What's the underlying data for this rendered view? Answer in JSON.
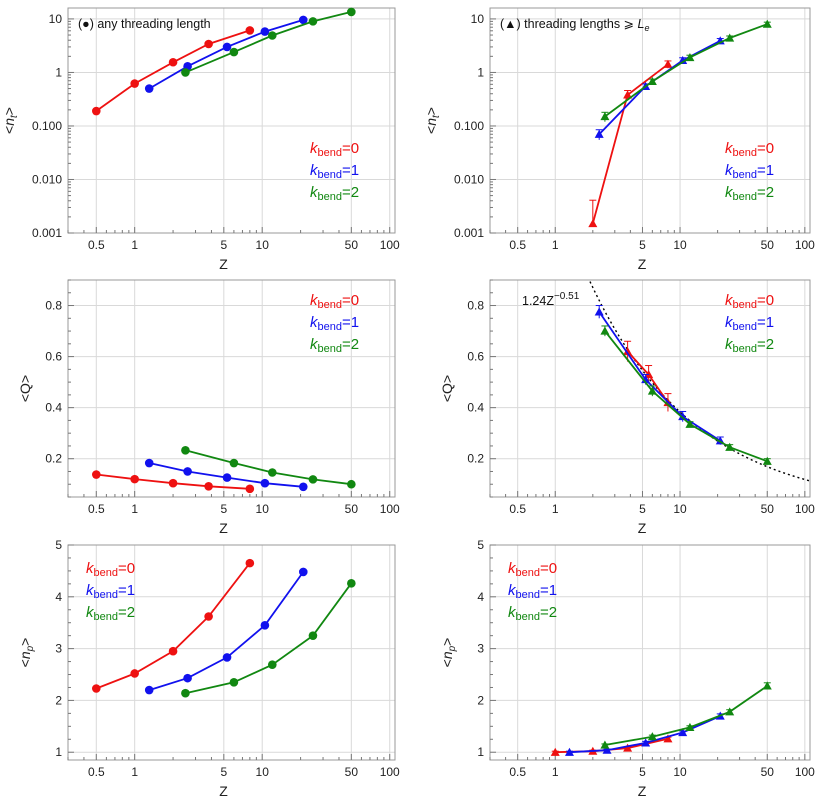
{
  "figure": {
    "type": "multi-panel log-x plot grid",
    "colors": {
      "k0": "#ee1111",
      "k1": "#1111ee",
      "k2": "#118811",
      "frame": "#999999",
      "grid": "#d9d9d9",
      "fit": "#000000"
    },
    "legend_entries": [
      {
        "symbol": "k",
        "subscript": "bend",
        "suffix": "=0",
        "color": "#ee1111"
      },
      {
        "symbol": "k",
        "subscript": "bend",
        "suffix": "=1",
        "color": "#1111ee"
      },
      {
        "symbol": "k",
        "subscript": "bend",
        "suffix": "=2",
        "color": "#118811"
      }
    ]
  },
  "chart_data": [
    {
      "id": "nt-left",
      "type": "line",
      "marker": "circle",
      "yscale": "log",
      "title": "(●) any threading length",
      "xlabel": "Z",
      "ylabel": "<n_t>",
      "xlim": [
        0.3,
        110
      ],
      "ylim": [
        0.001,
        16
      ],
      "xticks": [
        0.5,
        1,
        5,
        10,
        50,
        100
      ],
      "xtick_labels": [
        "0.5",
        "1",
        "5",
        "10",
        "50",
        "100"
      ],
      "yticks": [
        0.001,
        0.01,
        0.1,
        1,
        10
      ],
      "ytick_labels": [
        "0.001",
        "0.010",
        "0.100",
        "1",
        "10"
      ],
      "legend_position": "center-right",
      "series": [
        {
          "name": "k_bend=0",
          "color": "#ee1111",
          "x": [
            0.5,
            1,
            2,
            3.8,
            8
          ],
          "y": [
            0.19,
            0.62,
            1.55,
            3.4,
            6.1
          ]
        },
        {
          "name": "k_bend=1",
          "color": "#1111ee",
          "x": [
            1.3,
            2.6,
            5.3,
            10.5,
            21
          ],
          "y": [
            0.5,
            1.3,
            3.0,
            5.8,
            9.6
          ]
        },
        {
          "name": "k_bend=2",
          "color": "#118811",
          "x": [
            2.5,
            6,
            12,
            25,
            50
          ],
          "y": [
            1.0,
            2.4,
            4.9,
            9.0,
            13.5
          ]
        }
      ]
    },
    {
      "id": "nt-right",
      "type": "line",
      "marker": "triangle",
      "yscale": "log",
      "title": "(▲) threading lengths ⩾ L_e",
      "xlabel": "Z",
      "ylabel": "<n_t>",
      "xlim": [
        0.3,
        110
      ],
      "ylim": [
        0.001,
        16
      ],
      "xticks": [
        0.5,
        1,
        5,
        10,
        50,
        100
      ],
      "xtick_labels": [
        "0.5",
        "1",
        "5",
        "10",
        "50",
        "100"
      ],
      "yticks": [
        0.001,
        0.01,
        0.1,
        1,
        10
      ],
      "ytick_labels": [
        "0.001",
        "0.010",
        "0.100",
        "1",
        "10"
      ],
      "legend_position": "center-right",
      "series": [
        {
          "name": "k_bend=0",
          "color": "#ee1111",
          "x": [
            2,
            3.8,
            8
          ],
          "y": [
            0.0015,
            0.38,
            1.42
          ],
          "err": [
            0.0026,
            0.08,
            0.22
          ]
        },
        {
          "name": "k_bend=1",
          "color": "#1111ee",
          "x": [
            2.25,
            5.3,
            10.5,
            21
          ],
          "y": [
            0.07,
            0.55,
            1.68,
            3.9
          ],
          "err": [
            0.015,
            0.06,
            0.2,
            0.4
          ]
        },
        {
          "name": "k_bend=2",
          "color": "#118811",
          "x": [
            2.5,
            6,
            12,
            25,
            50
          ],
          "y": [
            0.15,
            0.68,
            1.9,
            4.4,
            8.0
          ],
          "err": [
            0.03,
            0.07,
            0.2,
            0.4,
            0.7
          ]
        }
      ]
    },
    {
      "id": "q-left",
      "type": "line",
      "marker": "circle",
      "yscale": "linear",
      "xlabel": "Z",
      "ylabel": "<Q>",
      "xlim": [
        0.3,
        110
      ],
      "ylim": [
        0.05,
        0.9
      ],
      "xticks": [
        0.5,
        1,
        5,
        10,
        50,
        100
      ],
      "xtick_labels": [
        "0.5",
        "1",
        "5",
        "10",
        "50",
        "100"
      ],
      "yticks": [
        0.2,
        0.4,
        0.6,
        0.8
      ],
      "ytick_labels": [
        "0.2",
        "0.4",
        "0.6",
        "0.8"
      ],
      "legend_position": "top-right",
      "series": [
        {
          "name": "k_bend=0",
          "color": "#ee1111",
          "x": [
            0.5,
            1,
            2,
            3.8,
            8
          ],
          "y": [
            0.138,
            0.12,
            0.104,
            0.092,
            0.082
          ]
        },
        {
          "name": "k_bend=1",
          "color": "#1111ee",
          "x": [
            1.3,
            2.6,
            5.3,
            10.5,
            21
          ],
          "y": [
            0.183,
            0.15,
            0.126,
            0.104,
            0.09
          ]
        },
        {
          "name": "k_bend=2",
          "color": "#118811",
          "x": [
            2.5,
            6,
            12,
            25,
            50
          ],
          "y": [
            0.233,
            0.183,
            0.146,
            0.119,
            0.1
          ]
        }
      ]
    },
    {
      "id": "q-right",
      "type": "line",
      "marker": "triangle",
      "yscale": "linear",
      "xlabel": "Z",
      "ylabel": "<Q>",
      "xlim": [
        0.3,
        110
      ],
      "ylim": [
        0.05,
        0.9
      ],
      "xticks": [
        0.5,
        1,
        5,
        10,
        50,
        100
      ],
      "xtick_labels": [
        "0.5",
        "1",
        "5",
        "10",
        "50",
        "100"
      ],
      "yticks": [
        0.2,
        0.4,
        0.6,
        0.8
      ],
      "ytick_labels": [
        "0.2",
        "0.4",
        "0.6",
        "0.8"
      ],
      "legend_position": "top-right",
      "annotation": {
        "text": "1.24Z",
        "exponent": "−0.51"
      },
      "fit": {
        "label": "1.24Z^-0.51",
        "a": 1.24,
        "b": -0.51,
        "style": "dotted",
        "xrange": [
          1.9,
          110
        ]
      },
      "series": [
        {
          "name": "k_bend=0",
          "color": "#ee1111",
          "x": [
            3.8,
            5.6,
            8
          ],
          "y": [
            0.62,
            0.53,
            0.42
          ],
          "err": [
            0.04,
            0.035,
            0.035
          ]
        },
        {
          "name": "k_bend=1",
          "color": "#1111ee",
          "x": [
            2.25,
            5.3,
            10.5,
            21
          ],
          "y": [
            0.775,
            0.51,
            0.365,
            0.27
          ],
          "err": [
            0.025,
            0.02,
            0.02,
            0.015
          ]
        },
        {
          "name": "k_bend=2",
          "color": "#118811",
          "x": [
            2.5,
            6,
            12,
            25,
            50
          ],
          "y": [
            0.7,
            0.465,
            0.335,
            0.245,
            0.19
          ],
          "err": [
            0.02,
            0.02,
            0.01,
            0.01,
            0.01
          ]
        }
      ]
    },
    {
      "id": "np-left",
      "type": "line",
      "marker": "circle",
      "yscale": "linear",
      "xlabel": "Z",
      "ylabel": "<n_p>",
      "xlim": [
        0.3,
        110
      ],
      "ylim": [
        0.85,
        5
      ],
      "xticks": [
        0.5,
        1,
        5,
        10,
        50,
        100
      ],
      "xtick_labels": [
        "0.5",
        "1",
        "5",
        "10",
        "50",
        "100"
      ],
      "yticks": [
        1,
        2,
        3,
        4,
        5
      ],
      "ytick_labels": [
        "1",
        "2",
        "3",
        "4",
        "5"
      ],
      "legend_position": "top-left",
      "series": [
        {
          "name": "k_bend=0",
          "color": "#ee1111",
          "x": [
            0.5,
            1,
            2,
            3.8,
            8
          ],
          "y": [
            2.23,
            2.52,
            2.95,
            3.62,
            4.65
          ]
        },
        {
          "name": "k_bend=1",
          "color": "#1111ee",
          "x": [
            1.3,
            2.6,
            5.3,
            10.5,
            21
          ],
          "y": [
            2.2,
            2.43,
            2.83,
            3.45,
            4.48
          ]
        },
        {
          "name": "k_bend=2",
          "color": "#118811",
          "x": [
            2.5,
            6,
            12,
            25,
            50
          ],
          "y": [
            2.14,
            2.35,
            2.69,
            3.25,
            4.26
          ]
        }
      ]
    },
    {
      "id": "np-right",
      "type": "line",
      "marker": "triangle",
      "yscale": "linear",
      "xlabel": "Z",
      "ylabel": "<n_p>",
      "xlim": [
        0.3,
        110
      ],
      "ylim": [
        0.85,
        5
      ],
      "xticks": [
        0.5,
        1,
        5,
        10,
        50,
        100
      ],
      "xtick_labels": [
        "0.5",
        "1",
        "5",
        "10",
        "50",
        "100"
      ],
      "yticks": [
        1,
        2,
        3,
        4,
        5
      ],
      "ytick_labels": [
        "1",
        "2",
        "3",
        "4",
        "5"
      ],
      "legend_position": "top-left",
      "series": [
        {
          "name": "k_bend=0",
          "color": "#ee1111",
          "x": [
            1,
            2,
            3.8,
            8
          ],
          "y": [
            1.0,
            1.02,
            1.08,
            1.26
          ],
          "err": [
            0.02,
            0.02,
            0.02,
            0.03
          ]
        },
        {
          "name": "k_bend=1",
          "color": "#1111ee",
          "x": [
            1.3,
            2.6,
            5.3,
            10.5,
            21
          ],
          "y": [
            1.0,
            1.04,
            1.18,
            1.38,
            1.7
          ],
          "err": [
            0.02,
            0.02,
            0.03,
            0.03,
            0.04
          ]
        },
        {
          "name": "k_bend=2",
          "color": "#118811",
          "x": [
            2.5,
            6,
            12,
            25,
            50
          ],
          "y": [
            1.14,
            1.3,
            1.48,
            1.78,
            2.28
          ],
          "err": [
            0.02,
            0.03,
            0.03,
            0.04,
            0.06
          ]
        }
      ]
    }
  ]
}
